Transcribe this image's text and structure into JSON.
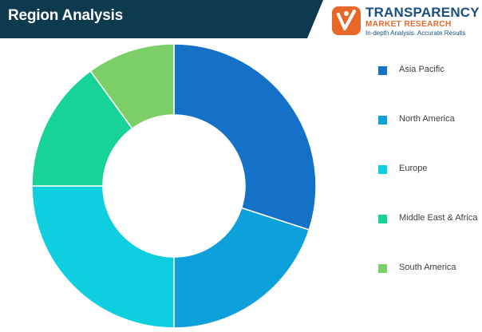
{
  "header": {
    "title": "Region Analysis",
    "bar_color": "#0e3a4f"
  },
  "logo": {
    "name": "TRANSPARENCY",
    "subtitle": "MARKET RESEARCH",
    "tagline": "In-depth Analysis. Accurate Results",
    "icon": "tmr-logo-icon",
    "primary_color": "#1b4f82",
    "accent_color": "#e8682a"
  },
  "chart_data": {
    "type": "pie",
    "donut": true,
    "title": "",
    "categories": [
      "Asia Pacific",
      "North America",
      "Europe",
      "Middle East & Africa",
      "South America"
    ],
    "values": [
      30,
      20,
      25,
      15,
      10
    ],
    "colors": [
      "#1570c8",
      "#0ea0da",
      "#0ecfe0",
      "#17d398",
      "#7ccf66"
    ],
    "legend": "right"
  }
}
